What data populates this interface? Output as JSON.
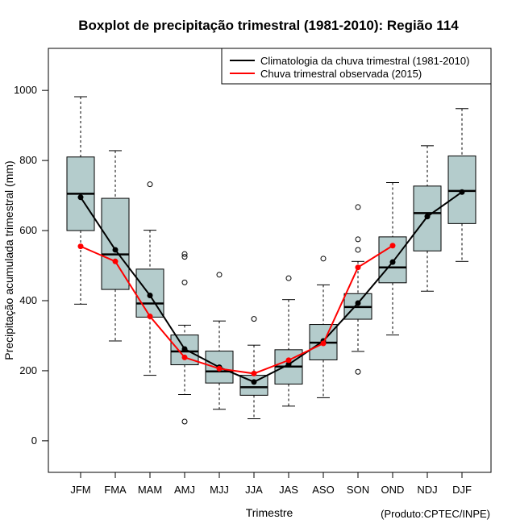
{
  "chart_data": {
    "type": "boxplot",
    "title": "Boxplot de precipitação trimestral (1981-2010): Região 114",
    "xlabel": "Trimestre",
    "ylabel": "Precipitação acumulada trimestral (mm)",
    "credit": "(Produto:CPTEC/INPE)",
    "ylim": [
      -90,
      1120
    ],
    "yticks": [
      0,
      200,
      400,
      600,
      800,
      1000
    ],
    "categories": [
      "JFM",
      "FMA",
      "MAM",
      "AMJ",
      "MJJ",
      "JJA",
      "JAS",
      "ASO",
      "SON",
      "OND",
      "NDJ",
      "DJF"
    ],
    "boxes": [
      {
        "whisker_low": 390,
        "q1": 600,
        "median": 705,
        "q3": 810,
        "whisker_high": 982,
        "outliers": []
      },
      {
        "whisker_low": 285,
        "q1": 432,
        "median": 532,
        "q3": 692,
        "whisker_high": 828,
        "outliers": []
      },
      {
        "whisker_low": 187,
        "q1": 353,
        "median": 392,
        "q3": 490,
        "whisker_high": 601,
        "outliers": [
          732
        ]
      },
      {
        "whisker_low": 132,
        "q1": 217,
        "median": 255,
        "q3": 302,
        "whisker_high": 330,
        "outliers": [
          533,
          525,
          452,
          55
        ]
      },
      {
        "whisker_low": 90,
        "q1": 165,
        "median": 198,
        "q3": 256,
        "whisker_high": 342,
        "outliers": [
          474
        ]
      },
      {
        "whisker_low": 63,
        "q1": 130,
        "median": 153,
        "q3": 187,
        "whisker_high": 273,
        "outliers": [
          348
        ]
      },
      {
        "whisker_low": 99,
        "q1": 162,
        "median": 212,
        "q3": 260,
        "whisker_high": 403,
        "outliers": [
          464
        ]
      },
      {
        "whisker_low": 123,
        "q1": 231,
        "median": 280,
        "q3": 332,
        "whisker_high": 445,
        "outliers": [
          520
        ]
      },
      {
        "whisker_low": 255,
        "q1": 347,
        "median": 382,
        "q3": 420,
        "whisker_high": 512,
        "outliers": [
          667,
          575,
          545,
          197
        ]
      },
      {
        "whisker_low": 302,
        "q1": 451,
        "median": 495,
        "q3": 582,
        "whisker_high": 737,
        "outliers": []
      },
      {
        "whisker_low": 427,
        "q1": 542,
        "median": 650,
        "q3": 727,
        "whisker_high": 842,
        "outliers": []
      },
      {
        "whisker_low": 512,
        "q1": 620,
        "median": 713,
        "q3": 813,
        "whisker_high": 948,
        "outliers": []
      }
    ],
    "series": [
      {
        "name": "Climatologia da chuva trimestral (1981-2010)",
        "color": "#000000",
        "values": [
          695,
          545,
          415,
          262,
          210,
          168,
          218,
          285,
          393,
          510,
          640,
          710
        ]
      },
      {
        "name": "Chuva trimestral observada (2015)",
        "color": "#ff0000",
        "values": [
          555,
          512,
          355,
          238,
          206,
          192,
          230,
          278,
          495,
          557,
          null,
          null
        ]
      }
    ],
    "box_fill": "#b4cccc",
    "legend_position": "top-right"
  }
}
